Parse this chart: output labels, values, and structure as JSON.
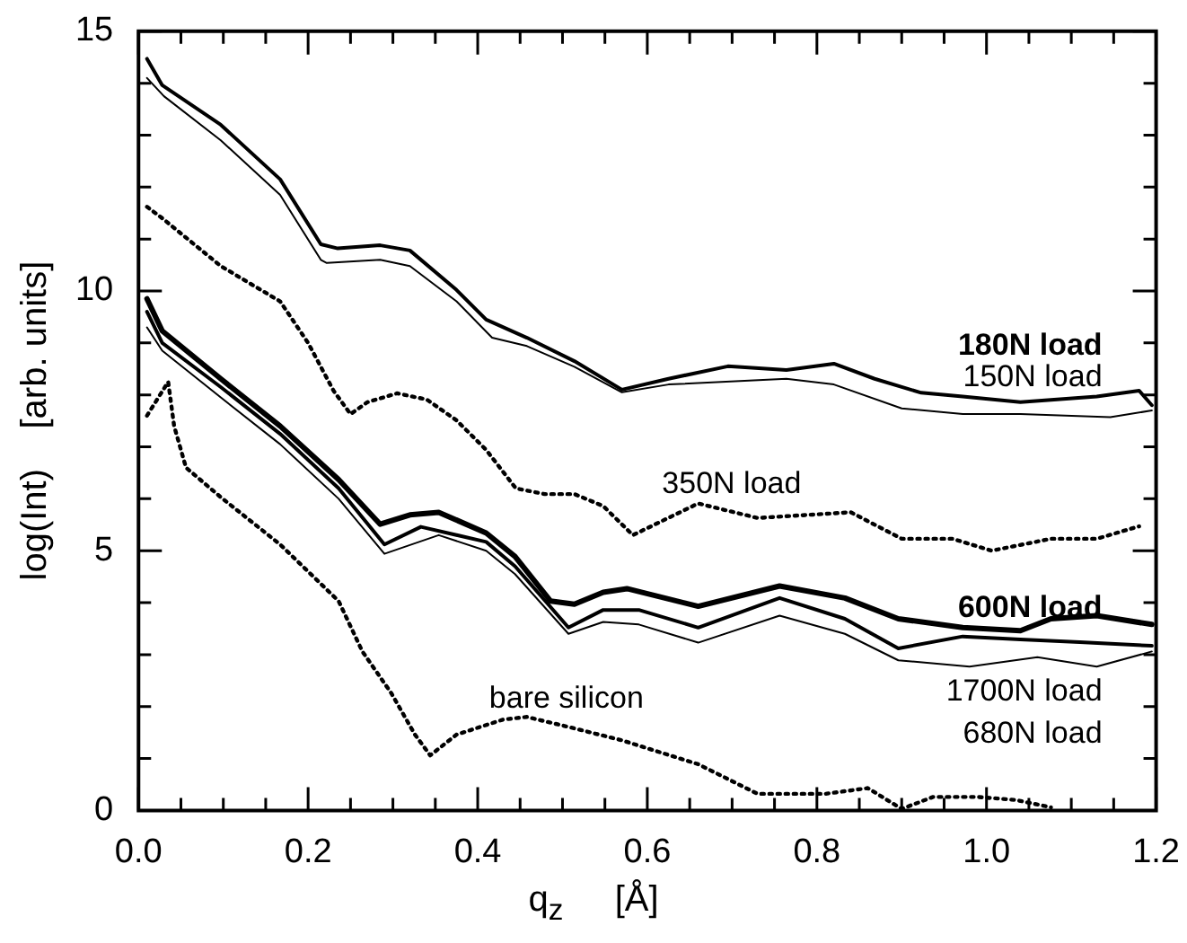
{
  "chart_data": {
    "type": "line",
    "xlabel": "q$_{z}$   [Å]",
    "ylabel": "log(Int)    [arb. units]",
    "xlim": [
      0,
      1.2
    ],
    "ylim": [
      0,
      15
    ],
    "xticks": [
      {
        "value": 0,
        "label": "0.0"
      },
      {
        "value": 0.05,
        "label": null
      },
      {
        "value": 0.1,
        "label": null
      },
      {
        "value": 0.15,
        "label": null
      },
      {
        "value": 0.2,
        "label": "0.2"
      },
      {
        "value": 0.25,
        "label": null
      },
      {
        "value": 0.3,
        "label": null
      },
      {
        "value": 0.35,
        "label": null
      },
      {
        "value": 0.4,
        "label": "0.4"
      },
      {
        "value": 0.45,
        "label": null
      },
      {
        "value": 0.5,
        "label": null
      },
      {
        "value": 0.55,
        "label": null
      },
      {
        "value": 0.6,
        "label": "0.6"
      },
      {
        "value": 0.65,
        "label": null
      },
      {
        "value": 0.7,
        "label": null
      },
      {
        "value": 0.75,
        "label": null
      },
      {
        "value": 0.8,
        "label": "0.8"
      },
      {
        "value": 0.85,
        "label": null
      },
      {
        "value": 0.9,
        "label": null
      },
      {
        "value": 0.95,
        "label": null
      },
      {
        "value": 1.0,
        "label": "1.0"
      },
      {
        "value": 1.05,
        "label": null
      },
      {
        "value": 1.1,
        "label": null
      },
      {
        "value": 1.15,
        "label": null
      },
      {
        "value": 1.2,
        "label": "1.2"
      }
    ],
    "yticks": [
      0,
      {
        "value": 1,
        "label": null
      },
      {
        "value": 2,
        "label": null
      },
      {
        "value": 3,
        "label": null
      },
      {
        "value": 4,
        "label": null
      },
      5,
      {
        "value": 6,
        "label": null
      },
      {
        "value": 7,
        "label": null
      },
      {
        "value": 8,
        "label": null
      },
      {
        "value": 9,
        "label": null
      },
      10,
      {
        "value": 11,
        "label": null
      },
      {
        "value": 12,
        "label": null
      },
      {
        "value": 13,
        "label": null
      },
      {
        "value": 14,
        "label": null
      },
      15
    ],
    "grid": false,
    "legend": "right",
    "marker": "none",
    "series": [
      {
        "name": "180N load",
        "color": "#000000",
        "line_style": "solid",
        "x": [
          0.01,
          0.028,
          0.097,
          0.167,
          0.215,
          0.235,
          0.285,
          0.32,
          0.375,
          0.41,
          0.458,
          0.514,
          0.57,
          0.625,
          0.695,
          0.764,
          0.82,
          0.868,
          0.923,
          0.972,
          1.04,
          1.13,
          1.18,
          1.195
        ],
        "values": [
          14.47,
          13.96,
          13.2,
          12.15,
          10.9,
          10.82,
          10.88,
          10.78,
          10.02,
          9.45,
          9.1,
          8.65,
          8.1,
          8.31,
          8.55,
          8.48,
          8.6,
          8.31,
          8.04,
          7.97,
          7.86,
          7.97,
          8.08,
          7.8
        ]
      },
      {
        "name": "150N load",
        "color": "#000000",
        "line_style": "solid",
        "x": [
          0.01,
          0.03,
          0.097,
          0.167,
          0.215,
          0.222,
          0.285,
          0.32,
          0.375,
          0.417,
          0.458,
          0.514,
          0.57,
          0.625,
          0.764,
          0.82,
          0.9,
          0.972,
          1.04,
          1.146,
          1.195
        ],
        "values": [
          14.1,
          13.75,
          12.9,
          11.85,
          10.6,
          10.54,
          10.6,
          10.48,
          9.8,
          9.1,
          8.94,
          8.54,
          8.05,
          8.2,
          8.31,
          8.2,
          7.74,
          7.63,
          7.63,
          7.57,
          7.7
        ]
      },
      {
        "name": "350N load",
        "color": "#000000",
        "line_style": "dotted",
        "x": [
          0.01,
          0.028,
          0.097,
          0.167,
          0.2,
          0.23,
          0.25,
          0.27,
          0.305,
          0.34,
          0.375,
          0.41,
          0.445,
          0.479,
          0.514,
          0.548,
          0.583,
          0.66,
          0.73,
          0.84,
          0.9,
          0.96,
          1.006,
          1.076,
          1.13,
          1.18
        ],
        "values": [
          11.62,
          11.4,
          10.48,
          9.8,
          9.0,
          8.08,
          7.63,
          7.86,
          8.03,
          7.91,
          7.51,
          6.94,
          6.2,
          6.09,
          6.09,
          5.86,
          5.3,
          5.91,
          5.63,
          5.74,
          5.23,
          5.23,
          5.0,
          5.23,
          5.23,
          5.47
        ]
      },
      {
        "name": "600N load",
        "color": "#000000",
        "line_style": "solid",
        "x": [
          0.01,
          0.028,
          0.097,
          0.167,
          0.236,
          0.285,
          0.32,
          0.354,
          0.41,
          0.444,
          0.486,
          0.514,
          0.548,
          0.576,
          0.66,
          0.756,
          0.833,
          0.896,
          0.972,
          1.04,
          1.076,
          1.13,
          1.195
        ],
        "values": [
          9.85,
          9.23,
          8.31,
          7.4,
          6.37,
          5.51,
          5.69,
          5.74,
          5.34,
          4.89,
          4.03,
          3.97,
          4.2,
          4.27,
          3.93,
          4.32,
          4.09,
          3.69,
          3.52,
          3.46,
          3.69,
          3.75,
          3.58
        ]
      },
      {
        "name": "1700N load",
        "color": "#000000",
        "line_style": "solid",
        "x": [
          0.01,
          0.028,
          0.097,
          0.167,
          0.236,
          0.29,
          0.333,
          0.41,
          0.444,
          0.507,
          0.548,
          0.59,
          0.66,
          0.756,
          0.833,
          0.896,
          0.972,
          1.04,
          1.11,
          1.195
        ],
        "values": [
          9.6,
          9.0,
          8.15,
          7.25,
          6.2,
          5.12,
          5.46,
          5.17,
          4.7,
          3.52,
          3.86,
          3.86,
          3.52,
          4.09,
          3.69,
          3.12,
          3.35,
          3.29,
          3.24,
          3.17
        ]
      },
      {
        "name": "680N load",
        "color": "#000000",
        "line_style": "solid",
        "x": [
          0.01,
          0.028,
          0.097,
          0.167,
          0.236,
          0.29,
          0.354,
          0.41,
          0.444,
          0.507,
          0.548,
          0.59,
          0.66,
          0.756,
          0.833,
          0.896,
          0.98,
          1.06,
          1.13,
          1.195
        ],
        "values": [
          9.3,
          8.85,
          7.95,
          7.05,
          6.0,
          4.94,
          5.3,
          5.0,
          4.55,
          3.4,
          3.63,
          3.58,
          3.23,
          3.75,
          3.4,
          2.89,
          2.77,
          2.95,
          2.77,
          3.06
        ]
      },
      {
        "name": "bare silicon",
        "color": "#000000",
        "line_style": "dotted",
        "x": [
          0.01,
          0.035,
          0.042,
          0.056,
          0.097,
          0.167,
          0.236,
          0.264,
          0.298,
          0.326,
          0.344,
          0.375,
          0.43,
          0.458,
          0.514,
          0.57,
          0.66,
          0.73,
          0.81,
          0.86,
          0.9,
          0.937,
          0.99,
          1.035,
          1.076
        ],
        "values": [
          7.6,
          8.25,
          7.4,
          6.6,
          6.03,
          5.12,
          4.03,
          3.06,
          2.26,
          1.46,
          1.06,
          1.46,
          1.75,
          1.8,
          1.58,
          1.35,
          0.89,
          0.32,
          0.32,
          0.43,
          0.03,
          0.26,
          0.26,
          0.2,
          0.06
        ]
      }
    ]
  }
}
